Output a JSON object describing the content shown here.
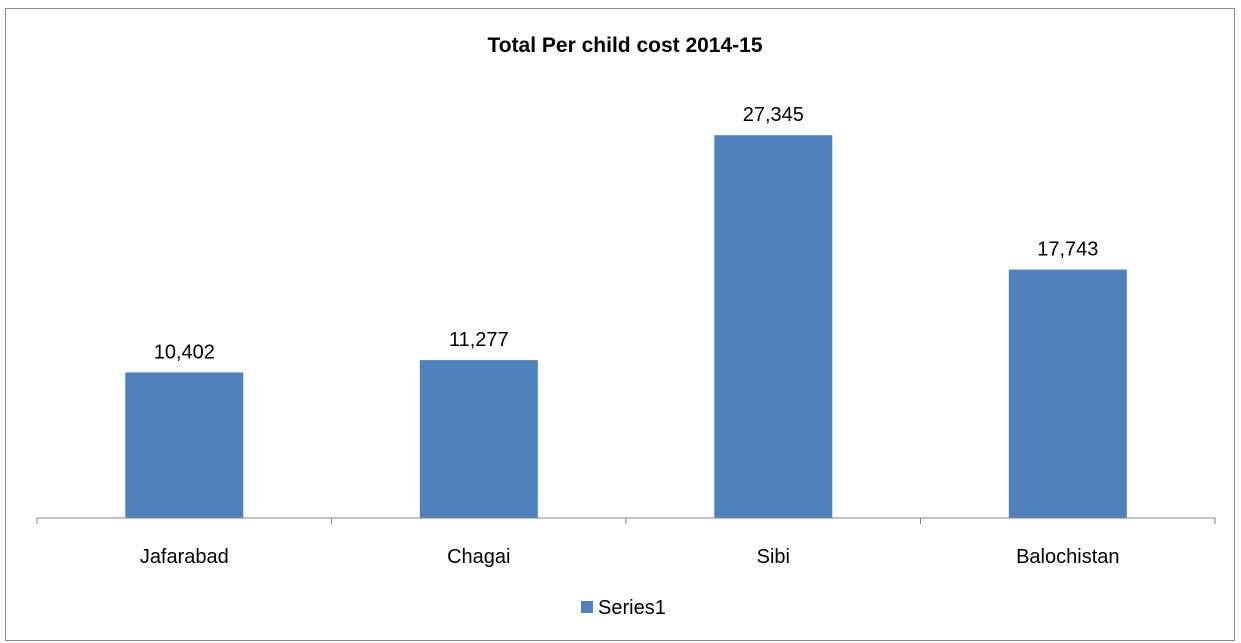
{
  "chart_data": {
    "type": "bar",
    "title": "Total Per child cost 2014-15",
    "categories": [
      "Jafarabad",
      "Chagai",
      "Sibi",
      "Balochistan"
    ],
    "series": [
      {
        "name": "Series1",
        "values": [
          10402,
          11277,
          27345,
          17743
        ],
        "labels": [
          "10,402",
          "11,277",
          "27,345",
          "17,743"
        ],
        "color": "#4f81bd"
      }
    ],
    "xlabel": "",
    "ylabel": "",
    "ylim": [
      0,
      30000
    ],
    "grid": false,
    "y_axis_visible": false,
    "data_labels": true,
    "legend_position": "bottom"
  }
}
